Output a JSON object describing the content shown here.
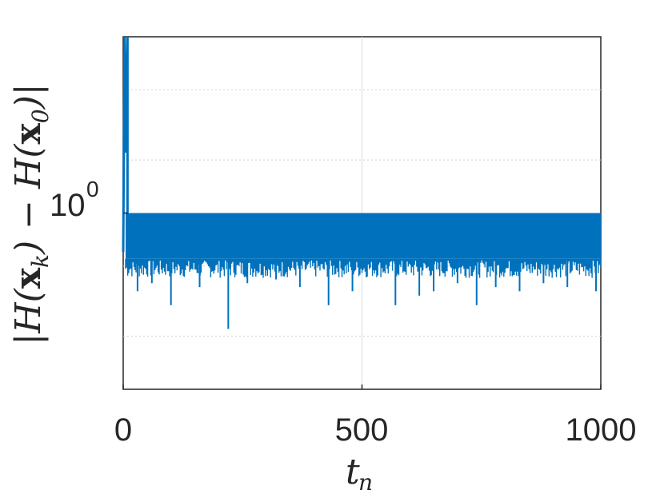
{
  "chart_data": {
    "type": "line",
    "title": "",
    "xlabel": "t_n",
    "ylabel": "|H(x_k) − H(x_0)|",
    "xlim": [
      0,
      1000
    ],
    "xticks": [
      0,
      500,
      1000
    ],
    "xtick_labels": [
      "0",
      "500",
      "1000"
    ],
    "yscale": "log",
    "ylim": [
      0.1,
      10
    ],
    "yticks": [
      1
    ],
    "ytick_labels": [
      "10",
      "0"
    ],
    "grid": true,
    "series": [
      {
        "color": "#0072BD",
        "description_values": {
          "initial_spike_max": 10,
          "upper_band": 1.0,
          "dense_band_low": 0.55,
          "dips": [
            [
              30,
              0.36
            ],
            [
              60,
              0.4
            ],
            [
              100,
              0.3
            ],
            [
              160,
              0.38
            ],
            [
              220,
              0.22
            ],
            [
              260,
              0.4
            ],
            [
              320,
              0.42
            ],
            [
              370,
              0.38
            ],
            [
              430,
              0.3
            ],
            [
              480,
              0.36
            ],
            [
              570,
              0.3
            ],
            [
              620,
              0.34
            ],
            [
              650,
              0.36
            ],
            [
              700,
              0.4
            ],
            [
              740,
              0.3
            ],
            [
              780,
              0.38
            ],
            [
              830,
              0.36
            ],
            [
              880,
              0.4
            ],
            [
              930,
              0.38
            ],
            [
              990,
              0.36
            ]
          ]
        }
      }
    ]
  }
}
